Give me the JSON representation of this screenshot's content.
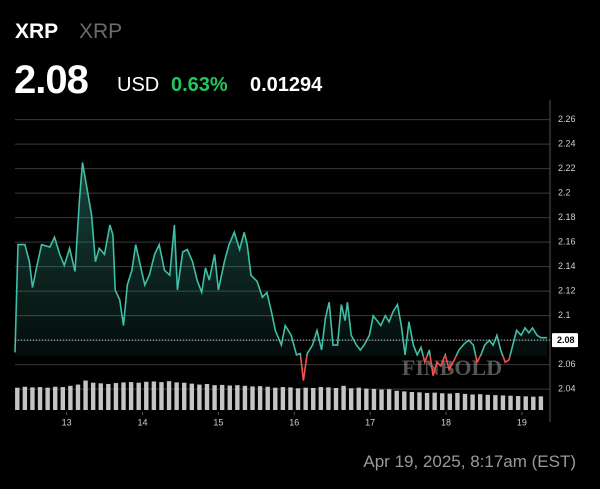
{
  "header": {
    "symbol": "XRP",
    "name": "XRP",
    "price": "2.08",
    "currency": "USD",
    "change_pct": "0.63%",
    "change": "0.01294"
  },
  "timestamp": "Apr 19, 2025, 8:17am (EST)",
  "chart_data": {
    "type": "line",
    "watermark": "FINBOLD",
    "xlim": [
      12.32,
      19.37
    ],
    "xticks": [
      13,
      14,
      15,
      16,
      17,
      18,
      19
    ],
    "ylim": [
      2.023,
      2.276
    ],
    "yticks": [
      2.04,
      2.06,
      2.08,
      2.1,
      2.12,
      2.14,
      2.16,
      2.18,
      2.2,
      2.22,
      2.24,
      2.26
    ],
    "y2lim": [
      0,
      1000
    ],
    "grid": true,
    "baseline": 2.067,
    "last_price": 2.08,
    "up_color": "#3fbfa6",
    "down_color": "#ef5350",
    "series": [
      {
        "color": "#3fbfa6",
        "x": [
          12.32,
          12.36,
          12.45,
          12.51,
          12.55,
          12.61,
          12.67,
          12.78,
          12.84,
          12.91,
          12.97,
          13.04,
          13.11,
          13.17,
          13.21,
          13.26,
          13.33,
          13.38,
          13.43,
          13.5,
          13.57,
          13.61,
          13.64,
          13.7,
          13.75,
          13.8,
          13.86,
          13.91,
          13.96,
          14.03,
          14.09,
          14.16,
          14.22,
          14.29,
          14.36,
          14.42,
          14.46,
          14.53,
          14.59,
          14.66,
          14.72,
          14.78,
          14.83,
          14.88,
          14.95,
          15.0,
          15.08,
          15.14,
          15.21,
          15.28,
          15.34,
          15.38,
          15.43,
          15.51,
          15.58,
          15.64,
          15.7,
          15.75,
          15.83,
          15.88,
          15.96,
          16.03,
          16.08,
          16.12,
          16.17,
          16.24,
          16.3,
          16.36,
          16.41,
          16.46,
          16.51,
          16.57,
          16.62,
          16.67,
          16.7,
          16.75,
          16.82,
          16.87,
          16.92,
          16.99,
          17.04,
          17.09,
          17.14,
          17.2,
          17.25,
          17.3,
          17.36,
          17.41,
          17.46,
          17.51,
          17.57,
          17.62,
          17.67,
          17.72,
          17.78,
          17.83,
          17.88,
          17.93,
          17.99,
          18.04,
          18.11,
          18.17,
          18.24,
          18.3,
          18.36,
          18.41,
          18.46,
          18.51,
          18.57,
          18.62,
          18.67,
          18.72,
          18.78,
          18.83,
          18.88,
          18.93,
          18.99,
          19.04,
          19.09,
          19.14,
          19.2,
          19.25,
          19.33
        ],
        "values": [
          2.07,
          2.158,
          2.158,
          2.144,
          2.123,
          2.141,
          2.158,
          2.156,
          2.164,
          2.15,
          2.141,
          2.155,
          2.136,
          2.195,
          2.225,
          2.207,
          2.182,
          2.144,
          2.155,
          2.15,
          2.174,
          2.166,
          2.121,
          2.113,
          2.092,
          2.125,
          2.137,
          2.158,
          2.144,
          2.125,
          2.133,
          2.15,
          2.158,
          2.137,
          2.133,
          2.174,
          2.121,
          2.152,
          2.154,
          2.144,
          2.129,
          2.119,
          2.139,
          2.129,
          2.15,
          2.121,
          2.144,
          2.158,
          2.168,
          2.154,
          2.168,
          2.158,
          2.133,
          2.128,
          2.115,
          2.119,
          2.103,
          2.088,
          2.076,
          2.092,
          2.084,
          2.068,
          2.069,
          2.047,
          2.069,
          2.076,
          2.088,
          2.072,
          2.098,
          2.111,
          2.076,
          2.076,
          2.109,
          2.096,
          2.111,
          2.084,
          2.076,
          2.072,
          2.076,
          2.084,
          2.1,
          2.096,
          2.092,
          2.1,
          2.095,
          2.103,
          2.109,
          2.092,
          2.068,
          2.095,
          2.076,
          2.068,
          2.074,
          2.062,
          2.072,
          2.051,
          2.062,
          2.059,
          2.068,
          2.056,
          2.064,
          2.072,
          2.077,
          2.08,
          2.076,
          2.062,
          2.068,
          2.076,
          2.08,
          2.076,
          2.084,
          2.072,
          2.062,
          2.064,
          2.076,
          2.088,
          2.084,
          2.09,
          2.086,
          2.09,
          2.084,
          2.082,
          2.082
        ]
      },
      {
        "type": "bar",
        "axis": "y2",
        "color": "#d9d9d9",
        "x": [
          12.35,
          12.45,
          12.55,
          12.65,
          12.75,
          12.85,
          12.95,
          13.05,
          13.15,
          13.25,
          13.35,
          13.45,
          13.55,
          13.65,
          13.75,
          13.85,
          13.95,
          14.05,
          14.15,
          14.25,
          14.35,
          14.45,
          14.55,
          14.65,
          14.75,
          14.85,
          14.95,
          15.05,
          15.15,
          15.25,
          15.35,
          15.45,
          15.55,
          15.65,
          15.75,
          15.85,
          15.95,
          16.05,
          16.15,
          16.25,
          16.35,
          16.45,
          16.55,
          16.65,
          16.75,
          16.85,
          16.95,
          17.05,
          17.15,
          17.25,
          17.35,
          17.45,
          17.55,
          17.65,
          17.75,
          17.85,
          17.95,
          18.05,
          18.15,
          18.25,
          18.35,
          18.45,
          18.55,
          18.65,
          18.75,
          18.85,
          18.95,
          19.05,
          19.15,
          19.25
        ],
        "values": [
          72,
          75,
          73,
          74,
          72,
          75,
          74,
          78,
          82,
          95,
          88,
          86,
          84,
          87,
          89,
          90,
          88,
          91,
          92,
          90,
          93,
          89,
          88,
          85,
          82,
          84,
          80,
          81,
          79,
          80,
          78,
          76,
          77,
          75,
          72,
          74,
          73,
          70,
          72,
          71,
          74,
          73,
          71,
          78,
          70,
          72,
          69,
          68,
          66,
          67,
          62,
          60,
          58,
          57,
          55,
          56,
          54,
          53,
          55,
          52,
          50,
          51,
          49,
          48,
          47,
          46,
          45,
          44,
          43,
          44
        ]
      }
    ]
  }
}
